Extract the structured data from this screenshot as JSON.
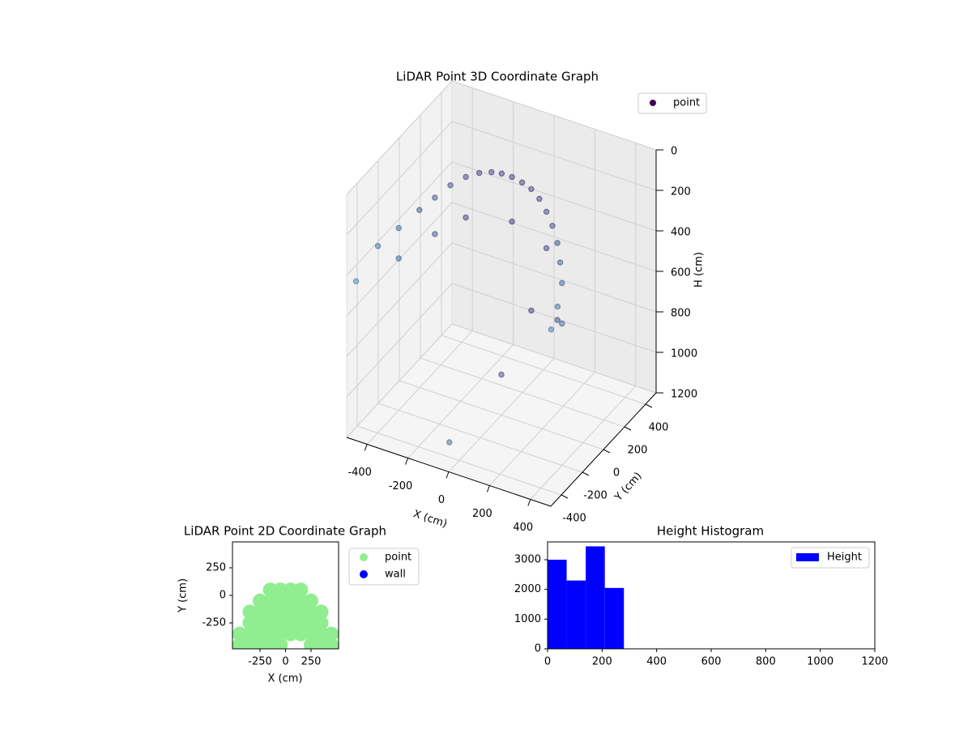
{
  "chart_data": [
    {
      "type": "scatter3d",
      "title": "LiDAR Point 3D Coordinate Graph",
      "xlabel": "X (cm)",
      "ylabel": "Y (cm)",
      "zlabel": "H (cm)",
      "xlim": [
        -500,
        500
      ],
      "ylim": [
        -500,
        500
      ],
      "zlim": [
        1200,
        0
      ],
      "xticks": [
        -400,
        -200,
        0,
        200,
        400
      ],
      "yticks": [
        -400,
        -200,
        0,
        200,
        400
      ],
      "zticks": [
        0,
        200,
        400,
        600,
        800,
        1000,
        1200
      ],
      "colormap": [
        "#440154",
        "#3b8bb0"
      ],
      "grid": true,
      "legend": "upper right",
      "series": [
        {
          "name": "point",
          "color": "#440154",
          "x": [
            -480,
            -450,
            -400,
            -350,
            -300,
            -250,
            -200,
            -150,
            -100,
            -50,
            0,
            50,
            100,
            150,
            200,
            250,
            300,
            350,
            400,
            430,
            450,
            -400,
            -300,
            -200,
            0,
            200,
            400,
            300,
            100,
            0,
            -100
          ],
          "y": [
            -450,
            -300,
            -200,
            -100,
            -50,
            0,
            50,
            80,
            100,
            100,
            100,
            100,
            90,
            70,
            40,
            0,
            -50,
            -120,
            -200,
            -300,
            -400,
            -200,
            -50,
            50,
            100,
            40,
            -200,
            -50,
            90,
            0,
            -300
          ],
          "z": [
            450,
            350,
            300,
            250,
            200,
            150,
            120,
            100,
            90,
            80,
            80,
            90,
            100,
            120,
            150,
            180,
            220,
            260,
            300,
            350,
            400,
            450,
            380,
            320,
            300,
            330,
            500,
            600,
            700,
            1000,
            1200
          ]
        }
      ]
    },
    {
      "type": "scatter",
      "title": "LiDAR Point 2D Coordinate Graph",
      "xlabel": "X (cm)",
      "ylabel": "Y (cm)",
      "xlim": [
        -520,
        520
      ],
      "ylim": [
        -485,
        485
      ],
      "xticks": [
        -250,
        0,
        250
      ],
      "yticks": [
        -250,
        0,
        250
      ],
      "legend": "outside right",
      "series": [
        {
          "name": "point",
          "color": "#90ee90",
          "x": [
            -450,
            -450,
            -350,
            -350,
            -350,
            -350,
            -250,
            -250,
            -250,
            -250,
            -250,
            -150,
            -150,
            -150,
            -150,
            -150,
            -150,
            -50,
            -50,
            -50,
            -50,
            -50,
            -50,
            50,
            50,
            50,
            50,
            50,
            150,
            150,
            150,
            150,
            150,
            250,
            250,
            250,
            250,
            250,
            350,
            350,
            350,
            350,
            450,
            450
          ],
          "y": [
            -450,
            -350,
            -450,
            -350,
            -250,
            -150,
            -450,
            -350,
            -250,
            -150,
            -50,
            -450,
            -350,
            -250,
            -150,
            -50,
            50,
            -450,
            -350,
            -250,
            -150,
            -50,
            50,
            -350,
            -250,
            -150,
            -50,
            50,
            -350,
            -250,
            -150,
            -50,
            50,
            -450,
            -350,
            -250,
            -150,
            -50,
            -450,
            -350,
            -250,
            -150,
            -450,
            -350
          ]
        },
        {
          "name": "wall",
          "color": "#0000ff",
          "x": [],
          "y": []
        }
      ]
    },
    {
      "type": "histogram",
      "title": "Height Histogram",
      "bins": [
        0,
        70,
        140,
        210,
        280
      ],
      "counts": [
        3000,
        2300,
        3450,
        2050
      ],
      "series_name": "Height",
      "color": "#0000ff",
      "xlim": [
        0,
        1200
      ],
      "ylim": [
        0,
        3600
      ],
      "xticks": [
        0,
        200,
        400,
        600,
        800,
        1000,
        1200
      ],
      "yticks": [
        0,
        1000,
        2000,
        3000
      ],
      "legend": "upper right"
    }
  ]
}
